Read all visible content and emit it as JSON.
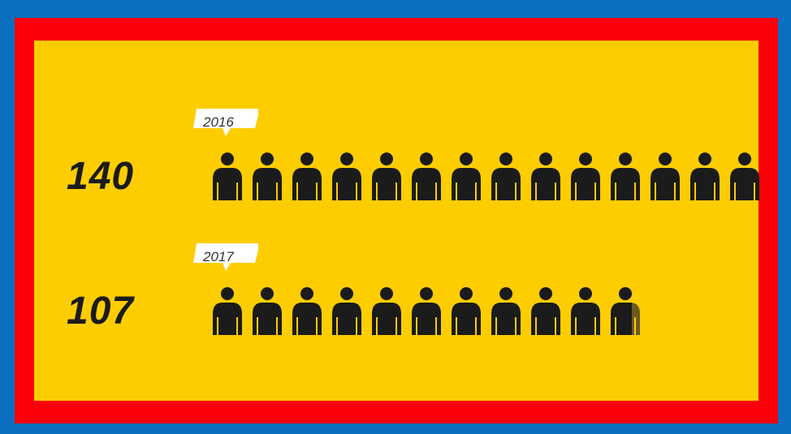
{
  "colors": {
    "outer_frame": "#0a6fc0",
    "inner_frame": "#fb0008",
    "panel": "#fdcd00",
    "icon": "#1b1b1b",
    "icon_partial": "#6b5a20"
  },
  "icon": "person-icon",
  "chart_data": {
    "type": "pictogram",
    "units_per_icon": 10,
    "categories": [
      "2016",
      "2017"
    ],
    "values": [
      140,
      107
    ],
    "series": [
      {
        "year": "2016",
        "count_label": "140",
        "value": 140
      },
      {
        "year": "2017",
        "count_label": "107",
        "value": 107
      }
    ]
  }
}
